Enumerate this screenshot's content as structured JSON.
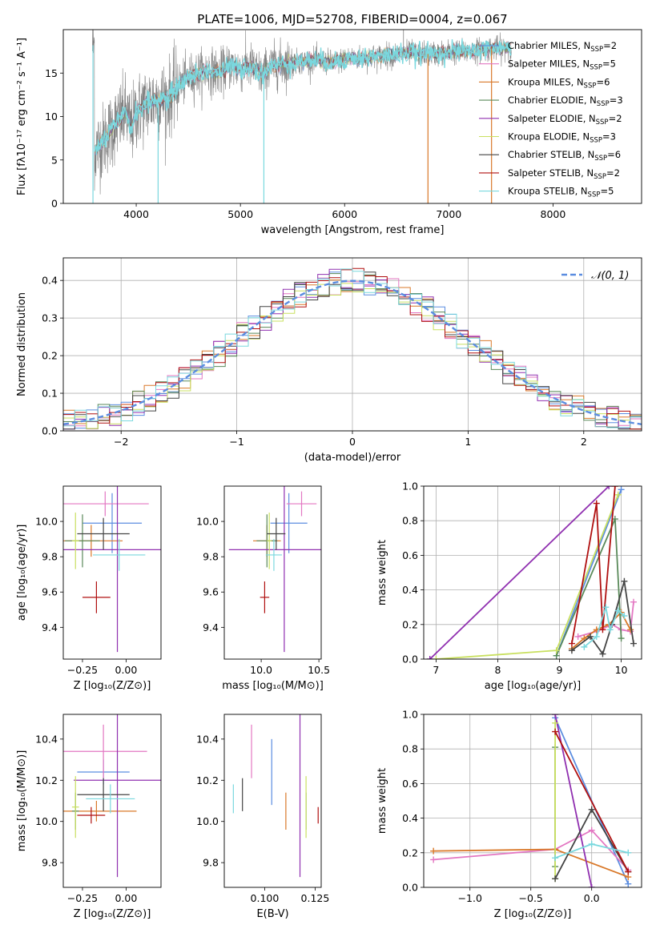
{
  "title": "PLATE=1006, MJD=52708, FIBERID=0004, z=0.067",
  "colors": {
    "Chabrier MILES": "#5b8de0",
    "Salpeter MILES": "#e377c2",
    "Kroupa MILES": "#d9792a",
    "Chabrier ELODIE": "#5a8a5a",
    "Salpeter ELODIE": "#9030b0",
    "Kroupa ELODIE": "#c9e060",
    "Chabrier STELIB": "#444444",
    "Salpeter STELIB": "#b01010",
    "Kroupa STELIB": "#7ad8de",
    "data": "#808080",
    "normal": "#5b8de0"
  },
  "chart_data": [
    {
      "type": "line",
      "name": "spectrum",
      "xlabel": "wavelength [Angstrom, rest frame]",
      "ylabel": "Flux [fλ10⁻¹⁷ erg cm⁻² s⁻¹ A⁻¹]",
      "xlim": [
        3300,
        8850
      ],
      "ylim": [
        0,
        20
      ],
      "xticks": [
        4000,
        5000,
        6000,
        7000,
        8000
      ],
      "yticks": [
        0,
        5,
        10,
        15
      ],
      "legend_position": "top-right",
      "legend": [
        {
          "model": "Chabrier MILES",
          "label": "Chabrier MILES, N",
          "sub": "SSP",
          "n": "=2"
        },
        {
          "model": "Salpeter MILES",
          "label": "Salpeter MILES, N",
          "sub": "SSP",
          "n": "=5"
        },
        {
          "model": "Kroupa MILES",
          "label": "Kroupa MILES, N",
          "sub": "SSP",
          "n": "=6"
        },
        {
          "model": "Chabrier ELODIE",
          "label": "Chabrier ELODIE, N",
          "sub": "SSP",
          "n": "=3"
        },
        {
          "model": "Salpeter ELODIE",
          "label": "Salpeter ELODIE, N",
          "sub": "SSP",
          "n": "=2"
        },
        {
          "model": "Kroupa ELODIE",
          "label": "Kroupa ELODIE, N",
          "sub": "SSP",
          "n": "=3"
        },
        {
          "model": "Chabrier STELIB",
          "label": "Chabrier STELIB, N",
          "sub": "SSP",
          "n": "=6"
        },
        {
          "model": "Salpeter STELIB",
          "label": "Salpeter STELIB, N",
          "sub": "SSP",
          "n": "=2"
        },
        {
          "model": "Kroupa STELIB",
          "label": "Kroupa STELIB, N",
          "sub": "SSP",
          "n": "=5"
        }
      ],
      "continuum": [
        [
          3600,
          6
        ],
        [
          3700,
          7.5
        ],
        [
          3800,
          9
        ],
        [
          3900,
          10.5
        ],
        [
          3950,
          8.5
        ],
        [
          4000,
          10.5
        ],
        [
          4100,
          11.5
        ],
        [
          4200,
          12
        ],
        [
          4300,
          12
        ],
        [
          4400,
          13.5
        ],
        [
          4500,
          14.5
        ],
        [
          4600,
          15
        ],
        [
          4700,
          15.3
        ],
        [
          4800,
          15
        ],
        [
          4900,
          15.8
        ],
        [
          5000,
          15.5
        ],
        [
          5100,
          15.8
        ],
        [
          5200,
          14.8
        ],
        [
          5300,
          15.8
        ],
        [
          5500,
          16.2
        ],
        [
          5700,
          16.5
        ],
        [
          5900,
          16.2
        ],
        [
          6000,
          16.6
        ],
        [
          6200,
          16.8
        ],
        [
          6400,
          17
        ],
        [
          6600,
          17.3
        ],
        [
          6800,
          17.2
        ],
        [
          7000,
          17.4
        ],
        [
          7200,
          17.5
        ],
        [
          7400,
          17.8
        ],
        [
          7600,
          17.9
        ],
        [
          8000,
          18.1
        ],
        [
          8300,
          18.2
        ]
      ],
      "data_wavelength_range": [
        3580,
        7600
      ],
      "model_wavelength_range": [
        3600,
        7600
      ],
      "absorption_features": [
        {
          "x": 3585,
          "y": 0
        },
        {
          "x": 4210,
          "y": 0
        },
        {
          "x": 5225,
          "y": 0
        },
        {
          "x": 6800,
          "y": 0
        },
        {
          "x": 7410,
          "y": 0
        }
      ],
      "emission_features": [
        {
          "x": 6565,
          "y": 20
        }
      ]
    },
    {
      "type": "histogram",
      "name": "residuals",
      "xlabel": "(data-model)/error",
      "ylabel": "Normed distribution",
      "xlim": [
        -2.5,
        2.5
      ],
      "ylim": [
        0,
        0.46
      ],
      "xticks": [
        -2,
        -1,
        0,
        1,
        2
      ],
      "yticks": [
        0.0,
        0.1,
        0.2,
        0.3,
        0.4
      ],
      "bin_width": 0.1,
      "legend_position": "top-right",
      "legend": [
        "𝒩(0, 1)"
      ],
      "reference_curve": "N(0,1)"
    },
    {
      "type": "scatter",
      "name": "age-vs-Z",
      "xlabel": "Z [log₁₀(Z/Z⊙)]",
      "ylabel": "age  [log₁₀(age/yr)]",
      "xlim": [
        -0.36,
        0.2
      ],
      "ylim": [
        9.22,
        10.2
      ],
      "xticks": [
        -0.25,
        0.0
      ],
      "yticks": [
        9.4,
        9.6,
        9.8,
        10.0
      ],
      "points": [
        {
          "model": "Chabrier MILES",
          "x": -0.08,
          "xerr": 0.17,
          "y": 9.99,
          "yerr": 0.17
        },
        {
          "model": "Salpeter MILES",
          "x": -0.12,
          "xerr": 0.25,
          "y": 10.1,
          "yerr": 0.07
        },
        {
          "model": "Kroupa MILES",
          "x": -0.2,
          "xerr": 0.18,
          "y": 9.89,
          "yerr": 0.09
        },
        {
          "model": "Chabrier ELODIE",
          "x": -0.25,
          "xerr": 0.1,
          "y": 9.89,
          "yerr": 0.15
        },
        {
          "model": "Salpeter ELODIE",
          "x": -0.05,
          "xerr": 0.45,
          "y": 9.84,
          "yerr": 0.58
        },
        {
          "model": "Kroupa ELODIE",
          "x": -0.29,
          "xerr": 0.02,
          "y": 9.89,
          "yerr": 0.16
        },
        {
          "model": "Chabrier STELIB",
          "x": -0.13,
          "xerr": 0.15,
          "y": 9.93,
          "yerr": 0.09
        },
        {
          "model": "Salpeter STELIB",
          "x": -0.17,
          "xerr": 0.08,
          "y": 9.57,
          "yerr": 0.09
        },
        {
          "model": "Kroupa STELIB",
          "x": -0.04,
          "xerr": 0.15,
          "y": 9.81,
          "yerr": 0.09
        }
      ]
    },
    {
      "type": "scatter",
      "name": "age-vs-mass",
      "xlabel": "mass [log₁₀(M/M⊙)]",
      "ylabel": "",
      "xlim": [
        9.68,
        10.52
      ],
      "ylim": [
        9.22,
        10.2
      ],
      "xticks": [
        10.0,
        10.5
      ],
      "yticks": [
        9.4,
        9.6,
        9.8,
        10.0
      ],
      "points": [
        {
          "model": "Chabrier MILES",
          "x": 10.24,
          "xerr": 0.16,
          "y": 9.99,
          "yerr": 0.17
        },
        {
          "model": "Salpeter MILES",
          "x": 10.35,
          "xerr": 0.13,
          "y": 10.1,
          "yerr": 0.07
        },
        {
          "model": "Kroupa MILES",
          "x": 10.05,
          "xerr": 0.12,
          "y": 9.89,
          "yerr": 0.09
        },
        {
          "model": "Chabrier ELODIE",
          "x": 10.05,
          "xerr": 0.09,
          "y": 9.89,
          "yerr": 0.15
        },
        {
          "model": "Salpeter ELODIE",
          "x": 10.2,
          "xerr": 0.48,
          "y": 9.84,
          "yerr": 0.58
        },
        {
          "model": "Kroupa ELODIE",
          "x": 10.07,
          "xerr": 0.02,
          "y": 9.89,
          "yerr": 0.16
        },
        {
          "model": "Chabrier STELIB",
          "x": 10.13,
          "xerr": 0.08,
          "y": 9.93,
          "yerr": 0.09
        },
        {
          "model": "Salpeter STELIB",
          "x": 10.03,
          "xerr": 0.04,
          "y": 9.57,
          "yerr": 0.09
        },
        {
          "model": "Kroupa STELIB",
          "x": 10.11,
          "xerr": 0.07,
          "y": 9.81,
          "yerr": 0.09
        }
      ]
    },
    {
      "type": "line",
      "name": "mass-weight-vs-age",
      "xlabel": "age  [log₁₀(age/yr)]",
      "ylabel": "mass weight",
      "xlim": [
        6.8,
        10.33
      ],
      "ylim": [
        0,
        1.0
      ],
      "xticks": [
        7,
        8,
        9,
        10
      ],
      "yticks": [
        0.0,
        0.2,
        0.4,
        0.6,
        0.8,
        1.0
      ],
      "grid": true,
      "series": [
        {
          "model": "Chabrier MILES",
          "x": [
            8.95,
            10.0
          ],
          "y": [
            0.02,
            0.98
          ]
        },
        {
          "model": "Salpeter MILES",
          "x": [
            9.3,
            9.6,
            9.85,
            10.0,
            10.15,
            10.2
          ],
          "y": [
            0.13,
            0.16,
            0.2,
            0.17,
            0.16,
            0.33
          ]
        },
        {
          "model": "Kroupa MILES",
          "x": [
            9.2,
            9.4,
            9.6,
            9.8,
            10.0,
            10.15
          ],
          "y": [
            0.06,
            0.12,
            0.17,
            0.2,
            0.27,
            0.17
          ]
        },
        {
          "model": "Chabrier ELODIE",
          "x": [
            8.95,
            9.9,
            10.0
          ],
          "y": [
            0.02,
            0.81,
            0.12
          ]
        },
        {
          "model": "Salpeter ELODIE",
          "x": [
            6.9,
            9.8
          ],
          "y": [
            0.0,
            1.0
          ]
        },
        {
          "model": "Kroupa ELODIE",
          "x": [
            7.0,
            8.95,
            9.95
          ],
          "y": [
            0.0,
            0.05,
            0.95
          ]
        },
        {
          "model": "Chabrier STELIB",
          "x": [
            9.2,
            9.5,
            9.7,
            9.85,
            10.05,
            10.2
          ],
          "y": [
            0.05,
            0.13,
            0.03,
            0.2,
            0.45,
            0.09
          ]
        },
        {
          "model": "Salpeter STELIB",
          "x": [
            9.2,
            9.6,
            9.7,
            9.9
          ],
          "y": [
            0.09,
            0.9,
            0.17,
            1.0
          ]
        },
        {
          "model": "Kroupa STELIB",
          "x": [
            9.4,
            9.6,
            9.75,
            9.82,
            9.95,
            10.05
          ],
          "y": [
            0.07,
            0.13,
            0.3,
            0.17,
            0.28,
            0.25
          ]
        }
      ]
    },
    {
      "type": "scatter",
      "name": "mass-vs-Z",
      "xlabel": "Z [log₁₀(Z/Z⊙)]",
      "ylabel": "mass [log₁₀(M/M⊙)]",
      "xlim": [
        -0.36,
        0.2
      ],
      "ylim": [
        9.68,
        10.52
      ],
      "xticks": [
        -0.25,
        0.0
      ],
      "yticks": [
        9.8,
        10.0,
        10.2,
        10.4
      ],
      "points": [
        {
          "model": "Chabrier MILES",
          "x": -0.13,
          "xerr": 0.15,
          "y": 10.24,
          "yerr": 0.06
        },
        {
          "model": "Salpeter MILES",
          "x": -0.13,
          "xerr": 0.25,
          "y": 10.34,
          "yerr": 0.13
        },
        {
          "model": "Kroupa MILES",
          "x": -0.17,
          "xerr": 0.23,
          "y": 10.05,
          "yerr": 0.05
        },
        {
          "model": "Chabrier ELODIE",
          "x": -0.29,
          "xerr": 0.02,
          "y": 10.05,
          "yerr": 0.09
        },
        {
          "model": "Salpeter ELODIE",
          "x": -0.05,
          "xerr": 0.25,
          "y": 10.2,
          "yerr": 0.47
        },
        {
          "model": "Kroupa ELODIE",
          "x": -0.29,
          "xerr": 0.02,
          "y": 10.07,
          "yerr": 0.15
        },
        {
          "model": "Chabrier STELIB",
          "x": -0.13,
          "xerr": 0.15,
          "y": 10.13,
          "yerr": 0.08
        },
        {
          "model": "Salpeter STELIB",
          "x": -0.2,
          "xerr": 0.08,
          "y": 10.03,
          "yerr": 0.04
        },
        {
          "model": "Kroupa STELIB",
          "x": -0.09,
          "xerr": 0.14,
          "y": 10.11,
          "yerr": 0.07
        }
      ]
    },
    {
      "type": "scatter",
      "name": "mass-vs-ebv",
      "xlabel": "E(B-V)",
      "ylabel": "",
      "xlim": [
        0.08,
        0.128
      ],
      "ylim": [
        9.68,
        10.52
      ],
      "xticks": [
        0.1,
        0.125
      ],
      "yticks": [
        9.8,
        10.0,
        10.2,
        10.4
      ],
      "points": [
        {
          "model": "Kroupa STELIB",
          "x": 0.0845,
          "y": 10.11,
          "yerr": 0.07
        },
        {
          "model": "Chabrier STELIB",
          "x": 0.089,
          "y": 10.13,
          "yerr": 0.08
        },
        {
          "model": "Salpeter MILES",
          "x": 0.0935,
          "y": 10.34,
          "yerr": 0.13
        },
        {
          "model": "Chabrier MILES",
          "x": 0.1035,
          "y": 10.24,
          "yerr": 0.16
        },
        {
          "model": "Kroupa MILES",
          "x": 0.1105,
          "y": 10.05,
          "yerr": 0.09
        },
        {
          "model": "Salpeter ELODIE",
          "x": 0.1175,
          "y": 10.2,
          "yerr": 0.47
        },
        {
          "model": "Chabrier ELODIE",
          "x": 0.1205,
          "y": 10.05,
          "yerr": 0.09
        },
        {
          "model": "Kroupa ELODIE",
          "x": 0.1205,
          "y": 10.07,
          "yerr": 0.15
        },
        {
          "model": "Salpeter STELIB",
          "x": 0.1265,
          "y": 10.03,
          "yerr": 0.04
        }
      ]
    },
    {
      "type": "line",
      "name": "mass-weight-vs-Z",
      "xlabel": "Z [log₁₀(Z/Z⊙)]",
      "ylabel": "mass weight",
      "xlim": [
        -1.38,
        0.41
      ],
      "ylim": [
        0,
        1.0
      ],
      "xticks": [
        -1.0,
        -0.5,
        0.0
      ],
      "yticks": [
        0.0,
        0.2,
        0.4,
        0.6,
        0.8,
        1.0
      ],
      "grid": true,
      "series": [
        {
          "model": "Chabrier MILES",
          "x": [
            -0.3,
            0.3
          ],
          "y": [
            0.98,
            0.02
          ]
        },
        {
          "model": "Salpeter MILES",
          "x": [
            -1.3,
            -0.3,
            0.0,
            0.3
          ],
          "y": [
            0.16,
            0.22,
            0.33,
            0.1
          ]
        },
        {
          "model": "Kroupa MILES",
          "x": [
            -1.3,
            -0.3,
            0.3
          ],
          "y": [
            0.21,
            0.22,
            0.06
          ]
        },
        {
          "model": "Chabrier ELODIE",
          "x": [
            -0.3,
            -0.3
          ],
          "y": [
            0.81,
            0.12
          ]
        },
        {
          "model": "Salpeter ELODIE",
          "x": [
            -0.3,
            0.0
          ],
          "y": [
            1.0,
            0.0
          ]
        },
        {
          "model": "Kroupa ELODIE",
          "x": [
            -0.3,
            -0.3
          ],
          "y": [
            0.05,
            0.95
          ]
        },
        {
          "model": "Chabrier STELIB",
          "x": [
            -0.3,
            0.0,
            0.3
          ],
          "y": [
            0.05,
            0.45,
            0.09
          ]
        },
        {
          "model": "Salpeter STELIB",
          "x": [
            -0.3,
            0.3
          ],
          "y": [
            0.9,
            0.09
          ]
        },
        {
          "model": "Kroupa STELIB",
          "x": [
            -0.3,
            0.0,
            0.3
          ],
          "y": [
            0.17,
            0.25,
            0.2
          ]
        }
      ]
    }
  ]
}
